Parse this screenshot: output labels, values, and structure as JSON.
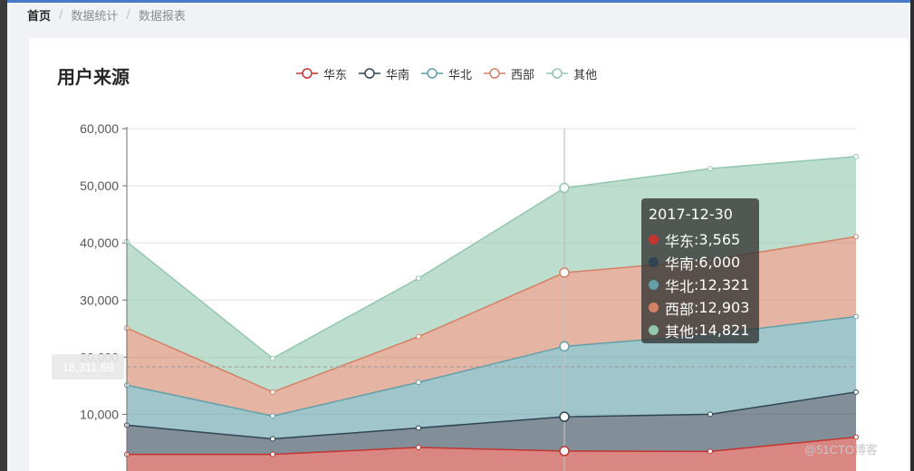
{
  "breadcrumb": [
    "首页",
    "数据统计",
    "数据报表"
  ],
  "breadcrumb_separator": "/",
  "card": {
    "title": "用户来源"
  },
  "watermark": "@51CTO博客",
  "colors": {
    "series": [
      "#c23531",
      "#2f4554",
      "#61a0a8",
      "#d48265",
      "#91c7ae"
    ],
    "gridline": "#e0e0e0",
    "axis": "#6e6e6e",
    "pointer": "#c0c0c0"
  },
  "chart_data": {
    "type": "area",
    "stacked": true,
    "x": [
      "",
      "",
      "",
      "2017-12-30",
      "",
      ""
    ],
    "yticks": [
      10000,
      20000,
      30000,
      40000,
      50000,
      60000
    ],
    "yticks_labels": [
      "10,000",
      "20,000",
      "30,000",
      "40,000",
      "50,000",
      "60,000"
    ],
    "ylim": [
      0,
      60000
    ],
    "grid": true,
    "legend_position": "top",
    "series": [
      {
        "name": "华东",
        "values": [
          3000,
          3000,
          4200,
          3565,
          3500,
          6000
        ]
      },
      {
        "name": "华南",
        "values": [
          5100,
          2700,
          3400,
          6000,
          6500,
          7900
        ]
      },
      {
        "name": "华北",
        "values": [
          7000,
          4000,
          8000,
          12321,
          14000,
          13200
        ]
      },
      {
        "name": "西部",
        "values": [
          10000,
          4200,
          8000,
          12903,
          13000,
          14000
        ]
      },
      {
        "name": "其他",
        "values": [
          15100,
          5900,
          10200,
          14821,
          16000,
          14000
        ]
      }
    ],
    "tooltip": {
      "title": "2017-12-30",
      "rows": [
        {
          "name": "华东",
          "value": "3,565"
        },
        {
          "name": "华南",
          "value": "6,000"
        },
        {
          "name": "华北",
          "value": "12,321"
        },
        {
          "name": "西部",
          "value": "12,903"
        },
        {
          "name": "其他",
          "value": "14,821"
        }
      ]
    },
    "pointer_label": "18,311.69",
    "pointer_value": 18311.69,
    "pointer_index": 3
  }
}
